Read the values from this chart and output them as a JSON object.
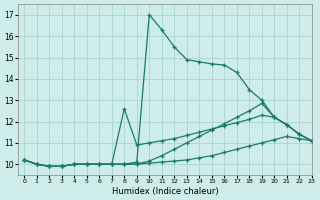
{
  "bg_color": "#ceecea",
  "grid_color": "#aad4d0",
  "line_color": "#1a7a6e",
  "xlabel": "Humidex (Indice chaleur)",
  "xlim": [
    -0.5,
    23
  ],
  "ylim": [
    9.5,
    17.5
  ],
  "yticks": [
    10,
    11,
    12,
    13,
    14,
    15,
    16,
    17
  ],
  "xticks": [
    0,
    1,
    2,
    3,
    4,
    5,
    6,
    7,
    8,
    9,
    10,
    11,
    12,
    13,
    14,
    15,
    16,
    17,
    18,
    19,
    20,
    21,
    22,
    23
  ],
  "s1_x": [
    0,
    1,
    2,
    3,
    4,
    5,
    6,
    7,
    8,
    9,
    10,
    11,
    12,
    13,
    14,
    15,
    16,
    17,
    18,
    19,
    20,
    21,
    22,
    23
  ],
  "s1_y": [
    10.2,
    10.0,
    9.9,
    9.9,
    10.0,
    10.0,
    10.0,
    10.0,
    10.0,
    10.1,
    17.0,
    16.3,
    15.5,
    14.9,
    14.8,
    14.7,
    14.65,
    14.3,
    13.5,
    13.0,
    12.2,
    11.85,
    11.4,
    11.1
  ],
  "s2_x": [
    0,
    1,
    2,
    3,
    4,
    5,
    6,
    7,
    8,
    9,
    10,
    11,
    12,
    13,
    14,
    15,
    16,
    17,
    18,
    19,
    20,
    21,
    22,
    23
  ],
  "s2_y": [
    10.2,
    10.0,
    9.9,
    9.9,
    10.0,
    10.0,
    10.0,
    10.0,
    10.0,
    10.0,
    10.15,
    10.4,
    10.7,
    11.0,
    11.3,
    11.6,
    11.9,
    12.2,
    12.5,
    12.85,
    12.2,
    11.85,
    11.4,
    11.1
  ],
  "s3_x": [
    0,
    1,
    2,
    3,
    4,
    5,
    6,
    7,
    8,
    9,
    10,
    11,
    12,
    13,
    14,
    15,
    16,
    17,
    18,
    19,
    20,
    21,
    22,
    23
  ],
  "s3_y": [
    10.2,
    10.0,
    9.9,
    9.9,
    10.0,
    10.0,
    10.0,
    10.0,
    12.6,
    10.9,
    11.0,
    11.1,
    11.2,
    11.35,
    11.5,
    11.65,
    11.8,
    11.95,
    12.1,
    12.3,
    12.2,
    11.85,
    11.4,
    11.1
  ],
  "s4_x": [
    0,
    1,
    2,
    3,
    4,
    5,
    6,
    7,
    8,
    9,
    10,
    11,
    12,
    13,
    14,
    15,
    16,
    17,
    18,
    19,
    20,
    21,
    22,
    23
  ],
  "s4_y": [
    10.2,
    10.0,
    9.9,
    9.9,
    10.0,
    10.0,
    10.0,
    10.0,
    10.0,
    10.0,
    10.05,
    10.1,
    10.15,
    10.2,
    10.3,
    10.4,
    10.55,
    10.7,
    10.85,
    11.0,
    11.15,
    11.3,
    11.2,
    11.1
  ]
}
